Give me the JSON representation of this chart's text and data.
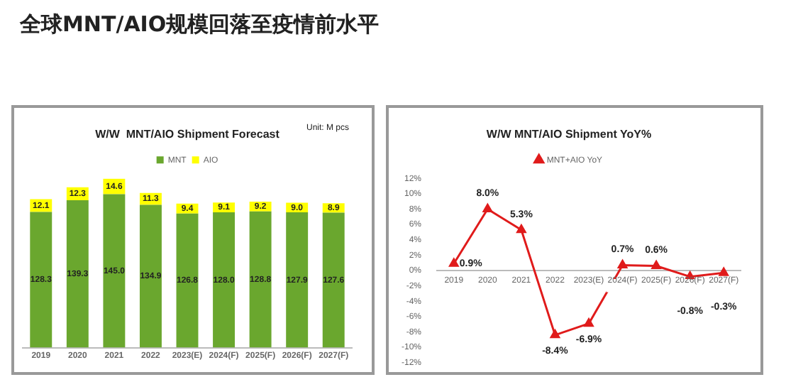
{
  "chart_data": [
    {
      "type": "other",
      "title": "全球MNT/AIO规模回落至疫情前水平"
    },
    {
      "type": "bar",
      "title": "W/W  MNT/AIO Shipment Forecast",
      "annotations": [
        "Unit: M pcs"
      ],
      "stacked": true,
      "legend": "top",
      "grid": false,
      "categories": [
        "2019",
        "2020",
        "2021",
        "2022",
        "2023(E)",
        "2024(F)",
        "2025(F)",
        "2026(F)",
        "2027(F)"
      ],
      "series": [
        {
          "name": "MNT",
          "color": "#6aa72e",
          "values": [
            128.3,
            139.3,
            145.0,
            134.9,
            126.8,
            128.0,
            128.8,
            127.9,
            127.6
          ],
          "value_labels": [
            "128.3",
            "139.3",
            "145.0",
            "134.9",
            "126.8",
            "128.0",
            "128.8",
            "127.9",
            "127.6"
          ]
        },
        {
          "name": "AIO",
          "color": "#ffff00",
          "values": [
            12.1,
            12.3,
            14.6,
            11.3,
            9.4,
            9.1,
            9.2,
            9.0,
            8.9
          ],
          "value_labels": [
            "12.1",
            "12.3",
            "14.6",
            "11.3",
            "9.4",
            "9.1",
            "9.2",
            "9.0",
            "8.9"
          ]
        }
      ]
    },
    {
      "type": "line",
      "title": "W/W MNT/AIO Shipment YoY%",
      "legend": "top",
      "grid": false,
      "marker": "triangle",
      "categories": [
        "2019",
        "2020",
        "2021",
        "2022",
        "2023(E)",
        "2024(F)",
        "2025(F)",
        "2026(F)",
        "2027(F)"
      ],
      "ylim": [
        -12,
        12
      ],
      "yticks": [
        {
          "value": -12,
          "label": "-12%"
        },
        {
          "value": -10,
          "label": "-10%"
        },
        {
          "value": -8,
          "label": "-8%"
        },
        {
          "value": -6,
          "label": "-6%"
        },
        {
          "value": -4,
          "label": "-4%"
        },
        {
          "value": -2,
          "label": "-2%"
        },
        {
          "value": 0,
          "label": "0%"
        },
        {
          "value": 2,
          "label": "2%"
        },
        {
          "value": 4,
          "label": "4%"
        },
        {
          "value": 6,
          "label": "6%"
        },
        {
          "value": 8,
          "label": "8%"
        },
        {
          "value": 10,
          "label": "10%"
        },
        {
          "value": 12,
          "label": "12%"
        }
      ],
      "series": [
        {
          "name": "MNT+AIO YoY",
          "color": "#e01b1b",
          "values": [
            0.9,
            8.0,
            5.3,
            -8.4,
            -6.9,
            0.7,
            0.6,
            -0.8,
            -0.3
          ],
          "value_labels": [
            "0.9%",
            "8.0%",
            "5.3%",
            "-8.4%",
            "-6.9%",
            "0.7%",
            "0.6%",
            "-0.8%",
            "-0.3%"
          ]
        }
      ]
    }
  ]
}
